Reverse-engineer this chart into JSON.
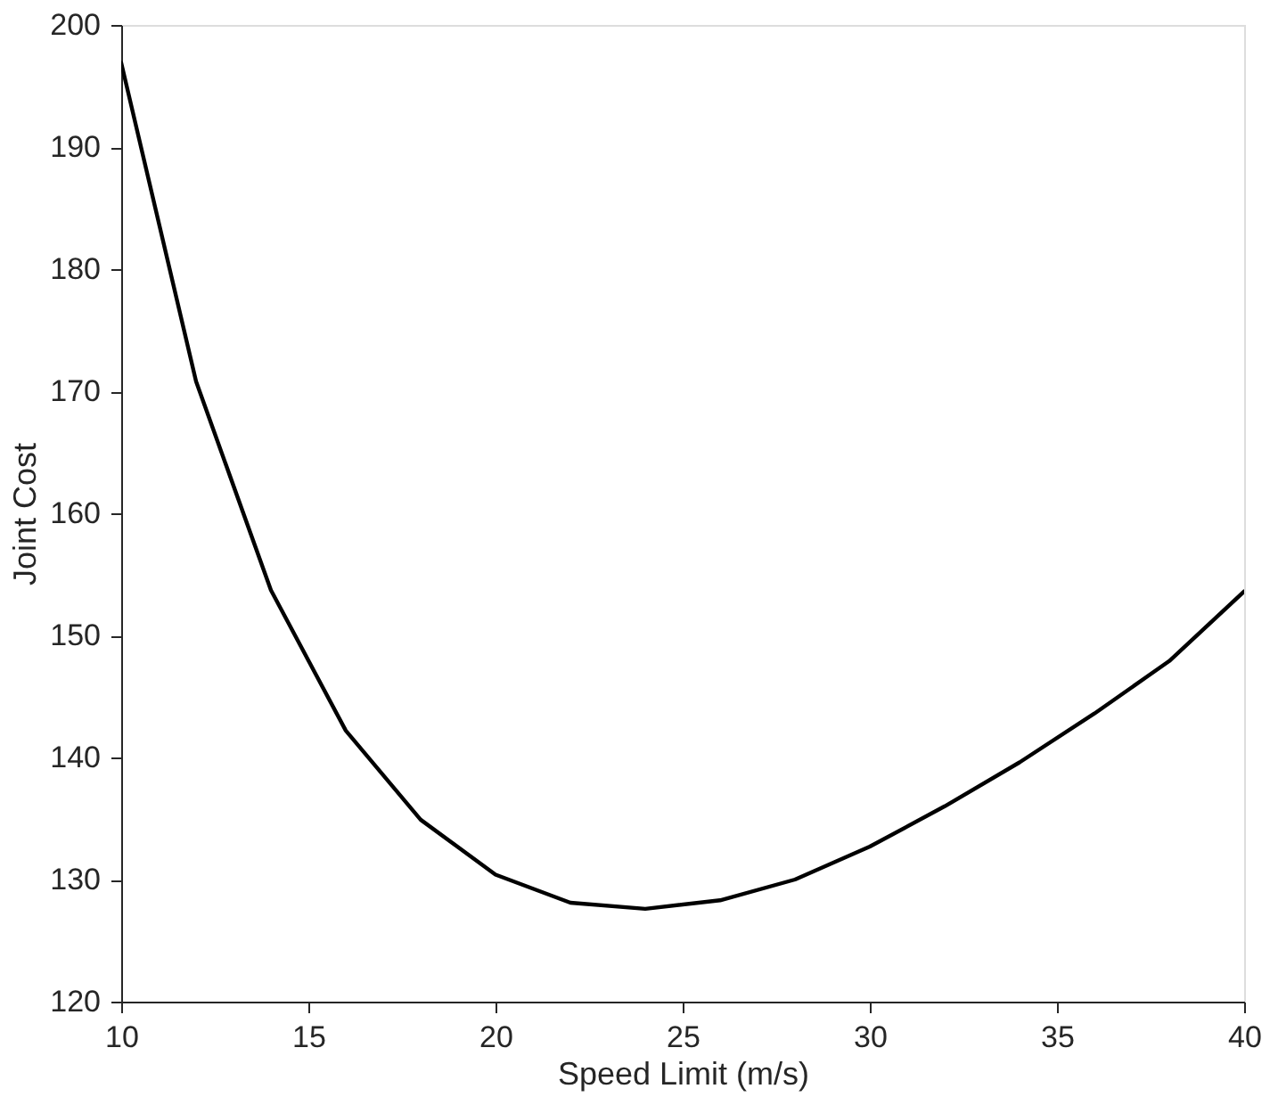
{
  "chart_data": {
    "type": "line",
    "xlabel": "Speed Limit (m/s)",
    "ylabel": "Joint Cost",
    "x": [
      10,
      12,
      14,
      16,
      18,
      20,
      22,
      24,
      26,
      28,
      30,
      32,
      34,
      36,
      38,
      40
    ],
    "series": [
      {
        "color": "#000000",
        "values": [
          196.9,
          170.8,
          153.7,
          142.2,
          134.9,
          130.4,
          128.1,
          127.6,
          128.3,
          130.0,
          132.7,
          136.0,
          139.6,
          143.6,
          147.9,
          153.6
        ]
      }
    ],
    "xlim": [
      10,
      40
    ],
    "xticks": [
      10,
      15,
      20,
      25,
      30,
      35,
      40
    ],
    "ylim": [
      120,
      200
    ],
    "yticks": [
      120,
      130,
      140,
      150,
      160,
      170,
      180,
      190,
      200
    ],
    "grid": false,
    "marker": "none",
    "line_style": "solid"
  }
}
